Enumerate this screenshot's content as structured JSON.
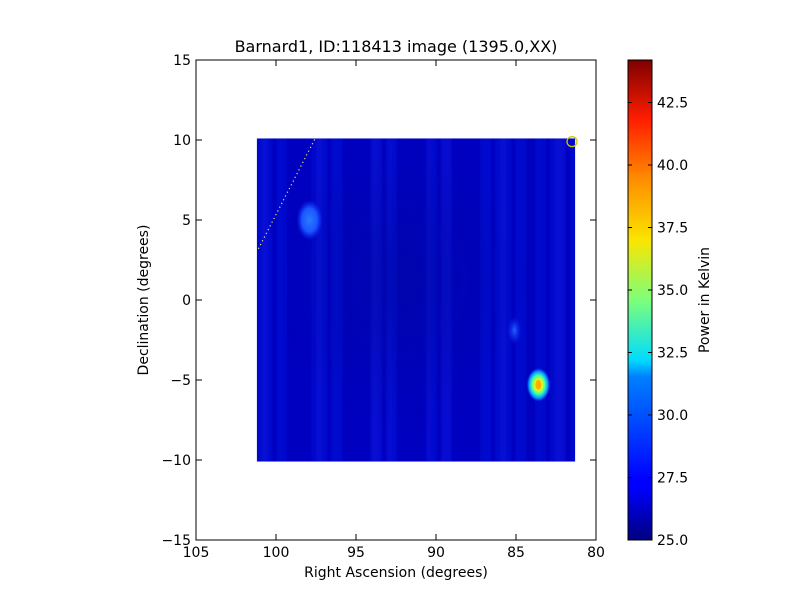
{
  "chart_data": {
    "type": "heatmap",
    "title": "Barnard1, ID:118413 image (1395.0,XX)",
    "xlabel": "Right Ascension (degrees)",
    "ylabel": "Declination (degrees)",
    "xlim": [
      105,
      80
    ],
    "ylim": [
      -15,
      15
    ],
    "xticks": [
      105,
      100,
      95,
      90,
      85,
      80
    ],
    "yticks": [
      15,
      10,
      5,
      0,
      -5,
      -10,
      -15
    ],
    "colorbar": {
      "label": "Power in Kelvin",
      "range": [
        25.0,
        44.2
      ],
      "ticks": [
        "25.0",
        "27.5",
        "30.0",
        "32.5",
        "35.0",
        "37.5",
        "40.0",
        "42.5"
      ],
      "colormap": "jet"
    },
    "map_extent": {
      "ra": [
        101.2,
        81.3
      ],
      "dec": [
        -10.1,
        10.1
      ]
    },
    "background_level_K": 26.3,
    "features": [
      {
        "name": "hot-spot",
        "ra": 83.6,
        "dec": -5.3,
        "peak_K": 38.5
      },
      {
        "name": "warm-spot",
        "ra": 97.9,
        "dec": 5.0,
        "peak_K": 28.5
      },
      {
        "name": "faint-spot",
        "ra": 85.1,
        "dec": -1.9,
        "peak_K": 28.0
      }
    ],
    "marker_circle": {
      "ra": 81.5,
      "dec": 9.9,
      "color": "#c8c800"
    },
    "dotted_line": {
      "from": {
        "ra": 101.1,
        "dec": 3.2
      },
      "to": {
        "ra": 97.5,
        "dec": 10.2
      },
      "color": "#e8e870"
    },
    "grid": false,
    "legend": "none"
  }
}
